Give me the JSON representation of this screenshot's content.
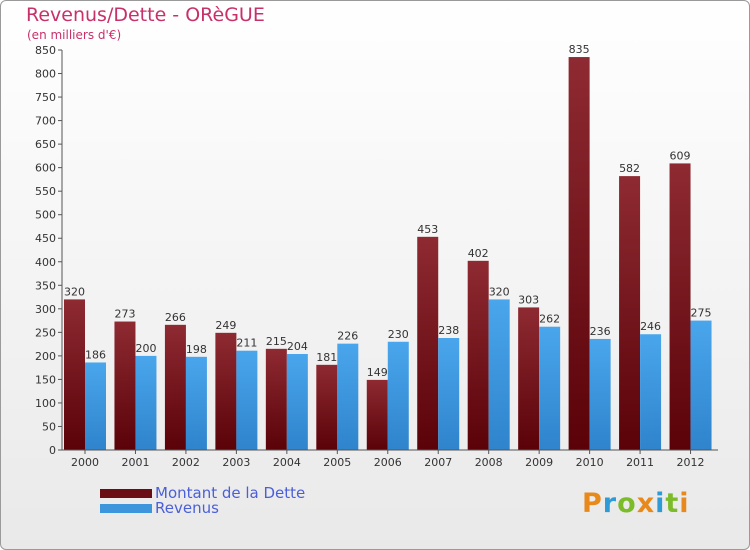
{
  "title": "Revenus/Dette - ORèGUE",
  "subtitle": "(en milliers d'€)",
  "colors": {
    "dette": "#7a1a22",
    "revenus": "#3d8fd6",
    "title": "#c8306a",
    "legend_text": "#4a5fd8"
  },
  "legend": [
    {
      "label": "Montant de la Dette",
      "color": "#6b0d14"
    },
    {
      "label": "Revenus",
      "color": "#3d96dc"
    }
  ],
  "logo": {
    "letters": [
      "P",
      "r",
      "o",
      "x",
      "i",
      "t",
      "i"
    ],
    "colors": [
      "#e8891c",
      "#2f9bd6",
      "#7cbc2a",
      "#e8891c",
      "#2f9bd6",
      "#7cbc2a",
      "#e8891c"
    ]
  },
  "chart_data": {
    "type": "bar",
    "categories": [
      "2000",
      "2001",
      "2002",
      "2003",
      "2004",
      "2005",
      "2006",
      "2007",
      "2008",
      "2009",
      "2010",
      "2011",
      "2012"
    ],
    "series": [
      {
        "name": "Montant de la Dette",
        "values": [
          320,
          273,
          266,
          249,
          215,
          181,
          149,
          453,
          402,
          303,
          835,
          582,
          609
        ]
      },
      {
        "name": "Revenus",
        "values": [
          186,
          200,
          198,
          211,
          204,
          226,
          230,
          238,
          320,
          262,
          236,
          246,
          275
        ]
      }
    ],
    "ylim": [
      0,
      850
    ],
    "yticks": [
      0,
      50,
      100,
      150,
      200,
      250,
      300,
      350,
      400,
      450,
      500,
      550,
      600,
      650,
      700,
      750,
      800,
      850
    ],
    "grid": false,
    "legend_position": "bottom-left"
  }
}
